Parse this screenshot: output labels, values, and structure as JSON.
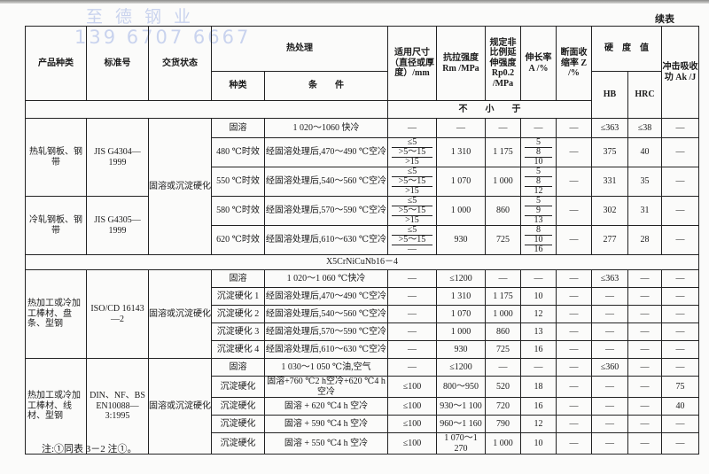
{
  "watermark": {
    "company": "至德钢业",
    "phone": "139 6707 6667"
  },
  "continued_label": "续表",
  "header": {
    "product": "产品种类",
    "standard": "标准号",
    "delivery": "交货状态",
    "heat_treatment": "热处理",
    "ht_type": "种类",
    "ht_condition": "条　　件",
    "size": "适用尺寸（直径或厚度）/mm",
    "rm": "抗拉强度 Rm /MPa",
    "rp": "规定非比例延伸强度 Rp0.2 /MPa",
    "a": "伸长率 A /%",
    "z": "断面收缩率 Z /%",
    "hardness": "硬　度　值",
    "hb": "HB",
    "hrc": "HRC",
    "ak": "冲击吸收功 Ak /J",
    "not_less": "不　　小　　于"
  },
  "sections": [
    {
      "groups": [
        {
          "product": "热轧钢板、钢带",
          "standard": "JIS G4304—1999",
          "rows": 3
        },
        {
          "product": "冷轧钢板、钢带",
          "standard": "JIS G4305—1999",
          "rows": 2
        }
      ],
      "delivery": "固溶或沉淀硬化",
      "rows": [
        [
          "固溶",
          "1 020～1060 快冷",
          "—",
          "—",
          "—",
          "—",
          "—",
          "≤363",
          "≤38",
          "—"
        ],
        [
          "480 ℃时效",
          "经固溶处理后,470～490 ℃空冷",
          [
            "≤5",
            ">5～15",
            ">15"
          ],
          "1 310",
          "1 175",
          [
            "5",
            "8",
            "10"
          ],
          "—",
          "375",
          "40",
          "—"
        ],
        [
          "550 ℃时效",
          "经固溶处理后,540～560 ℃空冷",
          [
            "≤5",
            ">5～15",
            ">15"
          ],
          "1 070",
          "1 000",
          [
            "5",
            "8",
            "12"
          ],
          "—",
          "331",
          "35",
          "—"
        ],
        [
          "580 ℃时效",
          "经固溶处理后,570～590 ℃空冷",
          [
            "≤5",
            ">5～15",
            ">15"
          ],
          "1 000",
          "860",
          [
            "5",
            "9",
            "13"
          ],
          "—",
          "302",
          "31",
          "—"
        ],
        [
          "620 ℃时效",
          "经固溶处理后,610～630 ℃空冷",
          [
            "≤5",
            ">5～15",
            "—"
          ],
          "930",
          "725",
          [
            "8",
            "10",
            "16"
          ],
          "—",
          "277",
          "28",
          "—"
        ]
      ]
    },
    {
      "grade": "X5CrNiCuNb16－4",
      "groups": [
        {
          "product": "热加工或冷加工棒材、盘条、型钢",
          "standard": "ISO/CD 16143—2",
          "rows": 5
        }
      ],
      "delivery": "固溶或沉淀硬化",
      "rows": [
        [
          "固溶",
          "1 020～1 060 ℃快冷",
          "—",
          "≤1200",
          "—",
          "—",
          "—",
          "≤363",
          "—",
          "—"
        ],
        [
          "沉淀硬化 1",
          "经固溶处理后,470～490 ℃空冷",
          "—",
          "1 310",
          "1 175",
          "10",
          "—",
          "—",
          "—",
          "—"
        ],
        [
          "沉淀硬化 2",
          "经固溶处理后,540～560 ℃空冷",
          "—",
          "1 070",
          "1 000",
          "12",
          "—",
          "—",
          "—",
          "—"
        ],
        [
          "沉淀硬化 3",
          "经固溶处理后,570～590 ℃空冷",
          "—",
          "1 000",
          "860",
          "13",
          "—",
          "—",
          "—",
          "—"
        ],
        [
          "沉淀硬化 4",
          "经固溶处理后,610～630 ℃空冷",
          "—",
          "930",
          "725",
          "16",
          "—",
          "—",
          "—",
          "—"
        ]
      ]
    },
    {
      "groups": [
        {
          "product": "热加工或冷加工棒材、线材、型钢",
          "standard": "DIN、NF、BS EN10088—3:1995",
          "rows": 5
        }
      ],
      "delivery": "固溶或沉淀硬化",
      "rows": [
        [
          "固溶",
          "1 030～1 050 ℃油,空气",
          "—",
          "≤1200",
          "—",
          "—",
          "—",
          "≤360",
          "—",
          "—"
        ],
        [
          "沉淀硬化",
          "固溶+760 ℃2 h空冷+620 ℃4 h空冷",
          "≤100",
          "800～950",
          "520",
          "18",
          "—",
          "—",
          "—",
          "75"
        ],
        [
          "沉淀硬化",
          "固溶 + 620 ℃4 h 空冷",
          "≤100",
          "930～1 100",
          "720",
          "16",
          "—",
          "—",
          "—",
          "40"
        ],
        [
          "沉淀硬化",
          "固溶 + 590 ℃4 h 空冷",
          "≤100",
          "960～1 160",
          "790",
          "12",
          "—",
          "—",
          "—",
          "—"
        ],
        [
          "沉淀硬化",
          "固溶 + 550 ℃4 h 空冷",
          "≤100",
          "1 070～1 270",
          "1 000",
          "10",
          "—",
          "—",
          "—",
          "—"
        ]
      ]
    }
  ],
  "note": "注:①同表 3－2 注①。"
}
